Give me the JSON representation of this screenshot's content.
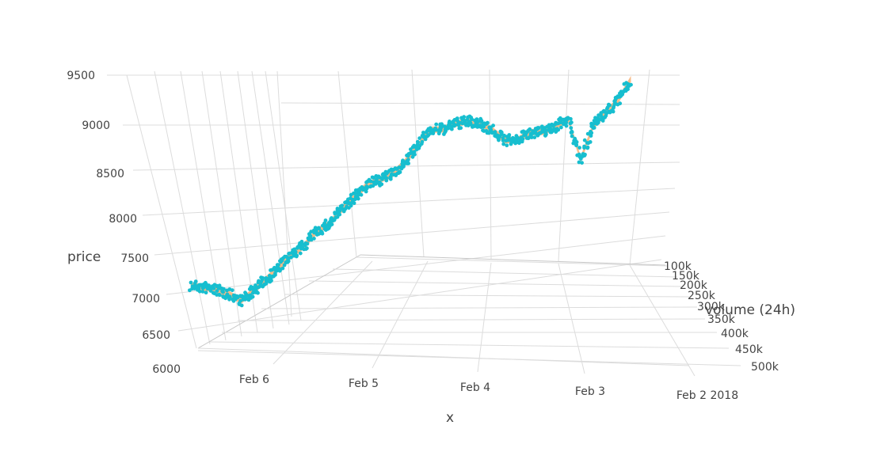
{
  "chart_data": {
    "type": "scatter3d",
    "title": "",
    "xlabel": "x",
    "ylabel": "volume (24h)",
    "zlabel": "price",
    "x_ticks": [
      "Feb 2 2018",
      "Feb 3",
      "Feb 4",
      "Feb 5",
      "Feb 6"
    ],
    "y_ticks": [
      "100k",
      "150k",
      "200k",
      "250k",
      "300k",
      "350k",
      "400k",
      "450k",
      "500k"
    ],
    "z_ticks": [
      "6000",
      "6500",
      "7000",
      "7500",
      "8000",
      "8500",
      "9000",
      "9500"
    ],
    "zlim": [
      6000,
      9500
    ],
    "grid": true,
    "colors": {
      "markers": "#17becf",
      "surface": "#f4a460",
      "grid": "#dcdcdc",
      "text": "#444444"
    },
    "series": [
      {
        "mode": "markers+surface",
        "x": [
          "2018-02-06T21:00",
          "2018-02-06T18:00",
          "2018-02-06T15:00",
          "2018-02-06T12:00",
          "2018-02-06T09:00",
          "2018-02-06T06:00",
          "2018-02-06T03:00",
          "2018-02-06T00:00",
          "2018-02-05T21:00",
          "2018-02-05T18:00",
          "2018-02-05T15:00",
          "2018-02-05T12:00",
          "2018-02-05T09:00",
          "2018-02-05T06:00",
          "2018-02-05T03:00",
          "2018-02-05T00:00",
          "2018-02-04T21:00",
          "2018-02-04T18:00",
          "2018-02-04T15:00",
          "2018-02-04T12:00",
          "2018-02-04T09:00",
          "2018-02-04T06:00",
          "2018-02-04T03:00",
          "2018-02-04T00:00",
          "2018-02-03T21:00",
          "2018-02-03T18:00",
          "2018-02-03T15:00",
          "2018-02-03T12:00",
          "2018-02-03T09:00",
          "2018-02-03T06:00",
          "2018-02-03T03:00",
          "2018-02-03T00:00",
          "2018-02-02T21:00",
          "2018-02-02T18:00",
          "2018-02-02T15:00",
          "2018-02-02T12:00"
        ],
        "price": [
          7150,
          7050,
          6950,
          6800,
          6600,
          6750,
          6950,
          7150,
          7350,
          7500,
          7750,
          7850,
          8100,
          8300,
          8500,
          8550,
          8600,
          8800,
          9050,
          9350,
          9300,
          9350,
          9350,
          9250,
          9050,
          8800,
          8750,
          8850,
          8800,
          8850,
          8950,
          8100,
          8700,
          8900,
          9100,
          9450
        ],
        "volume": [
          400000,
          380000,
          360000,
          340000,
          320000,
          300000,
          280000,
          260000,
          250000,
          240000,
          230000,
          220000,
          210000,
          200000,
          190000,
          180000,
          175000,
          170000,
          165000,
          160000,
          155000,
          150000,
          145000,
          140000,
          135000,
          130000,
          125000,
          120000,
          115000,
          110000,
          105000,
          100000,
          100000,
          100000,
          100000,
          100000
        ]
      }
    ]
  }
}
